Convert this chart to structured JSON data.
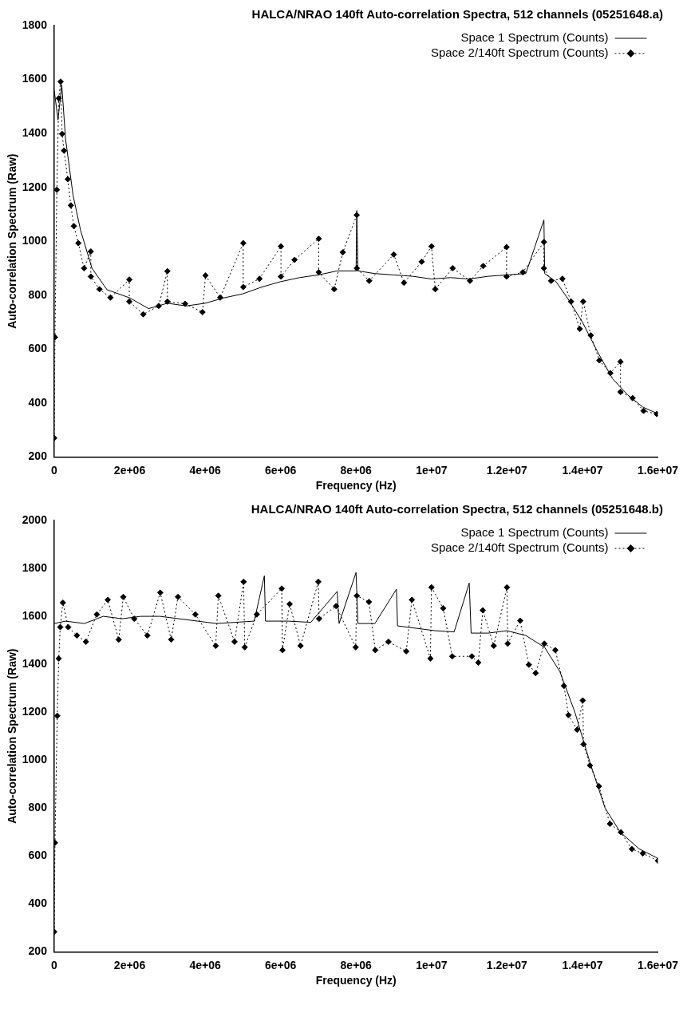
{
  "chart_data": [
    {
      "type": "line",
      "title": "HALCA/NRAO 140ft Auto-correlation Spectra, 512 channels (05251648.a)",
      "xlabel": "Frequency (Hz)",
      "ylabel": "Auto-correlation Spectrum (Raw)",
      "xlim": [
        0,
        16000000
      ],
      "ylim": [
        200,
        1800
      ],
      "xticks": [
        0,
        {
          "value": 2000000,
          "label": "2e+06"
        },
        {
          "value": 4000000,
          "label": "4e+06"
        },
        {
          "value": 6000000,
          "label": "6e+06"
        },
        {
          "value": 8000000,
          "label": "8e+06"
        },
        {
          "value": 10000000,
          "label": "1e+07"
        },
        {
          "value": 12000000,
          "label": "1.2e+07"
        },
        {
          "value": 14000000,
          "label": "1.4e+07"
        },
        {
          "value": 16000000,
          "label": "1.6e+07"
        }
      ],
      "yticks": [
        200,
        400,
        600,
        800,
        1000,
        1200,
        1400,
        1600,
        1800
      ],
      "legend": "top right",
      "series": [
        {
          "name": "Space 1 Spectrum (Counts)",
          "color": "#000000",
          "marker": "none",
          "line_style": "solid",
          "x": [
            0,
            100000,
            200000,
            300000,
            500000,
            700000,
            1000000,
            1400000,
            2000000,
            2500000,
            3000000,
            3500000,
            4000000,
            4500000,
            5000000,
            5500000,
            6000000,
            6500000,
            7000000,
            7500000,
            8000000,
            8020000,
            8050000,
            8500000,
            9000000,
            9500000,
            10000000,
            10500000,
            11000000,
            11500000,
            12000000,
            12500000,
            12980000,
            13000000,
            13300000,
            13600000,
            14000000,
            14400000,
            14800000,
            15200000,
            15600000,
            16000000
          ],
          "values": [
            1560,
            1450,
            1580,
            1380,
            1170,
            1040,
            900,
            820,
            790,
            750,
            770,
            760,
            770,
            790,
            805,
            830,
            850,
            865,
            875,
            890,
            890,
            1114,
            890,
            880,
            875,
            870,
            860,
            865,
            860,
            870,
            875,
            880,
            1079,
            880,
            850,
            790,
            700,
            590,
            490,
            430,
            385,
            360
          ]
        },
        {
          "name": "Space 2/140ft Spectrum (Counts)",
          "color": "#000000",
          "marker": "diamond",
          "line_style": "dotted",
          "x": [
            0,
            20000,
            70000,
            120000,
            170000,
            210000,
            260000,
            360000,
            440000,
            520000,
            640000,
            790000,
            970000,
            970000,
            1200000,
            1490000,
            1990000,
            1990000,
            2360000,
            2770000,
            3000000,
            3000000,
            3470000,
            3930000,
            4010000,
            4400000,
            5010000,
            5010000,
            5440000,
            6010000,
            6010000,
            6370000,
            7010000,
            7010000,
            7420000,
            7650000,
            8020000,
            8020000,
            8350000,
            9000000,
            9270000,
            9740000,
            10000000,
            10100000,
            10560000,
            11020000,
            11370000,
            11990000,
            11990000,
            12420000,
            12980000,
            12980000,
            13170000,
            13470000,
            13700000,
            13930000,
            14020000,
            14220000,
            14450000,
            14740000,
            15010000,
            15010000,
            15330000,
            15620000,
            15970000
          ],
          "values": [
            270,
            644,
            1191,
            1530,
            1592,
            1398,
            1336,
            1230,
            1133,
            1056,
            993,
            900,
            962,
            869,
            822,
            791,
            858,
            776,
            729,
            760,
            889,
            776,
            768,
            737,
            873,
            791,
            993,
            830,
            861,
            981,
            869,
            931,
            1009,
            885,
            822,
            959,
            1097,
            900,
            853,
            951,
            846,
            924,
            981,
            822,
            900,
            853,
            908,
            978,
            869,
            885,
            997,
            900,
            853,
            861,
            776,
            675,
            776,
            651,
            558,
            511,
            553,
            441,
            418,
            371,
            359
          ]
        }
      ]
    },
    {
      "type": "line",
      "title": "HALCA/NRAO 140ft Auto-correlation Spectra, 512 channels (05251648.b)",
      "xlabel": "Frequency (Hz)",
      "ylabel": "Auto-correlation Spectrum (Raw)",
      "xlim": [
        0,
        16000000
      ],
      "ylim": [
        200,
        2000
      ],
      "xticks": [
        0,
        {
          "value": 2000000,
          "label": "2e+06"
        },
        {
          "value": 4000000,
          "label": "4e+06"
        },
        {
          "value": 6000000,
          "label": "6e+06"
        },
        {
          "value": 8000000,
          "label": "8e+06"
        },
        {
          "value": 10000000,
          "label": "1e+07"
        },
        {
          "value": 12000000,
          "label": "1.2e+07"
        },
        {
          "value": 14000000,
          "label": "1.4e+07"
        },
        {
          "value": 16000000,
          "label": "1.6e+07"
        }
      ],
      "yticks": [
        200,
        400,
        600,
        800,
        1000,
        1200,
        1400,
        1600,
        1800,
        2000
      ],
      "legend": "top right",
      "series": [
        {
          "name": "Space 1 Spectrum (Counts)",
          "color": "#000000",
          "marker": "none",
          "line_style": "solid",
          "x": [
            0,
            300000,
            800000,
            1300000,
            1800000,
            2300000,
            2800000,
            3300000,
            3800000,
            4300000,
            4800000,
            5300000,
            5570000,
            5600000,
            6200000,
            6800000,
            7500000,
            7550000,
            8000000,
            8050000,
            8500000,
            9070000,
            9100000,
            9600000,
            10100000,
            10600000,
            11000000,
            11050000,
            11500000,
            12000000,
            12500000,
            13000000,
            13400000,
            13800000,
            14200000,
            14600000,
            15000000,
            15500000,
            16000000
          ],
          "values": [
            1570,
            1580,
            1570,
            1600,
            1590,
            1600,
            1600,
            1590,
            1580,
            1570,
            1575,
            1580,
            1769,
            1580,
            1580,
            1575,
            1704,
            1570,
            1783,
            1570,
            1570,
            1713,
            1560,
            1550,
            1540,
            1535,
            1739,
            1530,
            1530,
            1540,
            1520,
            1470,
            1370,
            1200,
            990,
            800,
            700,
            630,
            590
          ]
        },
        {
          "name": "Space 2/140ft Spectrum (Counts)",
          "color": "#000000",
          "marker": "diamond",
          "line_style": "dotted",
          "x": [
            0,
            20000,
            80000,
            120000,
            160000,
            230000,
            370000,
            600000,
            840000,
            1130000,
            1420000,
            1710000,
            1830000,
            2120000,
            2470000,
            2810000,
            3100000,
            3280000,
            3740000,
            4280000,
            4350000,
            4780000,
            5020000,
            5050000,
            5370000,
            6030000,
            6050000,
            6240000,
            6530000,
            7000000,
            7020000,
            7470000,
            7990000,
            8020000,
            8340000,
            8510000,
            8860000,
            9330000,
            9480000,
            9970000,
            10000000,
            10310000,
            10550000,
            11070000,
            11240000,
            11360000,
            11650000,
            12000000,
            12020000,
            12350000,
            12580000,
            12760000,
            12990000,
            13280000,
            13510000,
            13630000,
            13860000,
            14010000,
            14030000,
            14200000,
            14440000,
            14730000,
            15020000,
            15310000,
            15600000,
            16000000
          ],
          "values": [
            284,
            655,
            1185,
            1424,
            1555,
            1657,
            1555,
            1520,
            1494,
            1608,
            1669,
            1503,
            1681,
            1590,
            1520,
            1699,
            1503,
            1681,
            1608,
            1477,
            1686,
            1494,
            1744,
            1471,
            1608,
            1716,
            1459,
            1651,
            1477,
            1744,
            1590,
            1643,
            1471,
            1686,
            1660,
            1459,
            1494,
            1454,
            1669,
            1424,
            1721,
            1634,
            1433,
            1433,
            1407,
            1625,
            1477,
            1721,
            1486,
            1582,
            1398,
            1363,
            1486,
            1459,
            1310,
            1188,
            1127,
            1249,
            1066,
            978,
            891,
            734,
            699,
            629,
            611,
            580
          ]
        }
      ]
    }
  ]
}
